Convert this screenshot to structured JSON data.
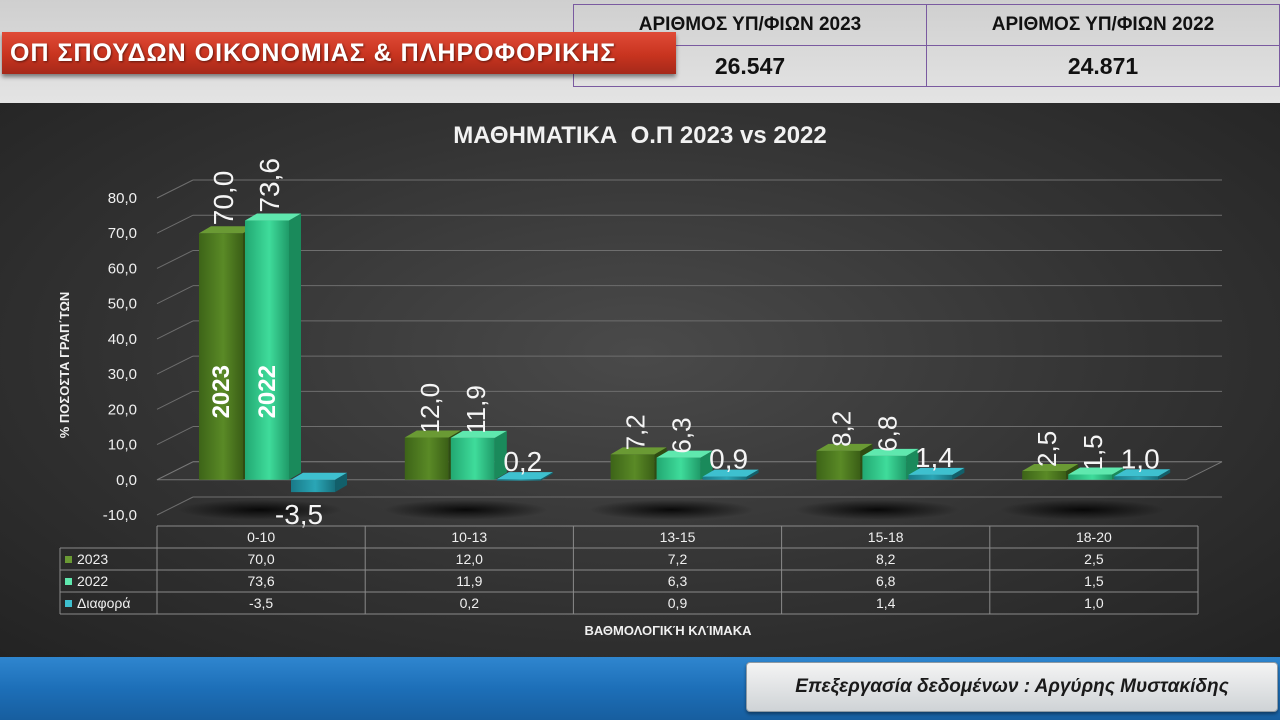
{
  "header": {
    "banner_title": "ΟΠ ΣΠΟΥΔΩΝ ΟΙΚΟΝΟΜΙΑΣ & ΠΛΗΡΟΦΟΡΙΚΗΣ",
    "stats": [
      {
        "label": "ΑΡΙΘΜΟΣ ΥΠ/ΦΙΩΝ 2023",
        "value": "26.547"
      },
      {
        "label": "ΑΡΙΘΜΟΣ ΥΠ/ΦΙΩΝ 2022",
        "value": "24.871"
      }
    ]
  },
  "footer": {
    "credit": "Επεξεργασία δεδομένων : Αργύρης Μυστακίδης"
  },
  "chart_data": {
    "type": "bar",
    "title": "ΜΑΘΗΜΑΤΙΚΑ  Ο.Π 2023 vs 2022",
    "xlabel": "ΒΑΘΜΟΛΟΓΙΚΉ ΚΛΊΜΑΚΑ",
    "ylabel": "% ΠΟΣΟΣΤΑ ΓΡΑΠ΄ΤΩΝ",
    "ylim": [
      -10,
      80
    ],
    "ytick_labels": [
      "-10,0",
      "0,0",
      "10,0",
      "20,0",
      "30,0",
      "40,0",
      "50,0",
      "60,0",
      "70,0",
      "80,0"
    ],
    "grid": true,
    "categories": [
      "0-10",
      "10-13",
      "13-15",
      "15-18",
      "18-20"
    ],
    "series": [
      {
        "name": "2023",
        "values": [
          70.0,
          12.0,
          7.2,
          8.2,
          2.5
        ],
        "labels": [
          "70,0",
          "12,0",
          "7,2",
          "8,2",
          "2,5"
        ],
        "color": "#4f7a1f"
      },
      {
        "name": "2022",
        "values": [
          73.6,
          11.9,
          6.3,
          6.8,
          1.5
        ],
        "labels": [
          "73,6",
          "11,9",
          "6,3",
          "6,8",
          "1,5"
        ],
        "color": "#2fc88a"
      },
      {
        "name": "Διαφορά",
        "values": [
          -3.5,
          0.2,
          0.9,
          1.4,
          1.0
        ],
        "labels": [
          "-3,5",
          "0,2",
          "0,9",
          "1,4",
          "1,0"
        ],
        "color": "#1f8e9e"
      }
    ],
    "inbar_labels": [
      "2023",
      "2022"
    ]
  }
}
